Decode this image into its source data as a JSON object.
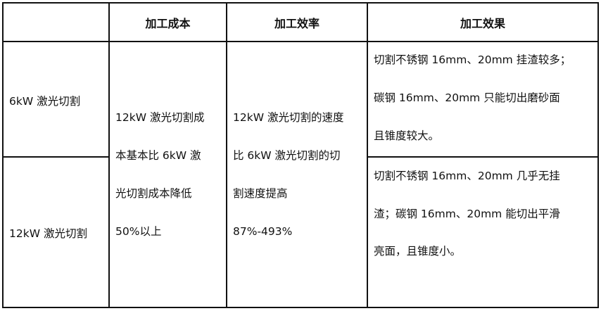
{
  "table": {
    "headers": [
      "",
      "加工成本",
      "加工效率",
      "加工效果"
    ],
    "rows": [
      {
        "label": "6kW 激光切割",
        "effect_lines": [
          "切割不锈钢 16mm、20mm 挂渣较多；",
          "碳钢 16mm、20mm 只能切出磨砂面",
          "且锥度较大。"
        ]
      },
      {
        "label": "12kW 激光切割",
        "effect_lines": [
          "切割不锈钢 16mm、20mm 几乎无挂",
          "渣；碳钢 16mm、20mm 能切出平滑",
          "亮面，且锥度小。"
        ]
      }
    ],
    "cost_lines": [
      "12kW 激光切割成",
      "本基本比 6kW 激",
      "光切割成本降低",
      "50%以上"
    ],
    "efficiency_lines": [
      "12kW 激光切割的速度",
      "比 6kW 激光切割的切",
      "割速度提高",
      "87%-493%"
    ]
  }
}
